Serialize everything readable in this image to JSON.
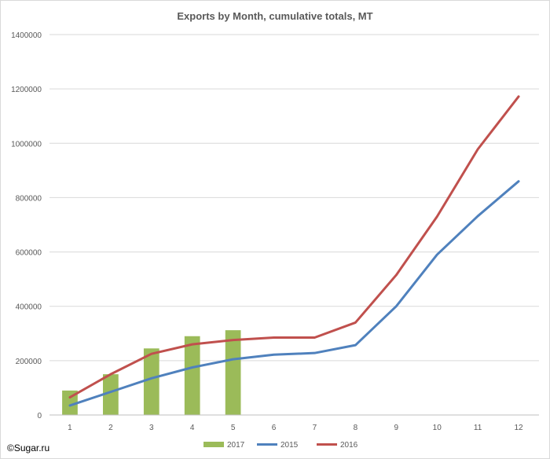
{
  "chart_data": {
    "type": "bar+line",
    "title": "Exports by Month, cumulative totals, MT",
    "xlabel": "",
    "ylabel": "",
    "categories": [
      "1",
      "2",
      "3",
      "4",
      "5",
      "6",
      "7",
      "8",
      "9",
      "10",
      "11",
      "12"
    ],
    "ylim": [
      0,
      1400000
    ],
    "yticks": [
      "0",
      "200000",
      "400000",
      "600000",
      "800000",
      "1000000",
      "1200000",
      "1400000"
    ],
    "grid": true,
    "legend_position": "bottom",
    "series": [
      {
        "name": "2017",
        "kind": "bar",
        "color": "#9bbb59",
        "values": [
          90000,
          150000,
          245000,
          290000,
          312000,
          null,
          null,
          null,
          null,
          null,
          null,
          null
        ]
      },
      {
        "name": "2015",
        "kind": "line",
        "color": "#4f81bd",
        "values": [
          35000,
          85000,
          135000,
          175000,
          205000,
          222000,
          228000,
          257000,
          400000,
          590000,
          732000,
          860000
        ]
      },
      {
        "name": "2016",
        "kind": "line",
        "color": "#c0504d",
        "values": [
          65000,
          150000,
          225000,
          260000,
          276000,
          285000,
          285000,
          340000,
          515000,
          730000,
          978000,
          1172000
        ]
      }
    ]
  },
  "source_label": "©Sugar.ru"
}
